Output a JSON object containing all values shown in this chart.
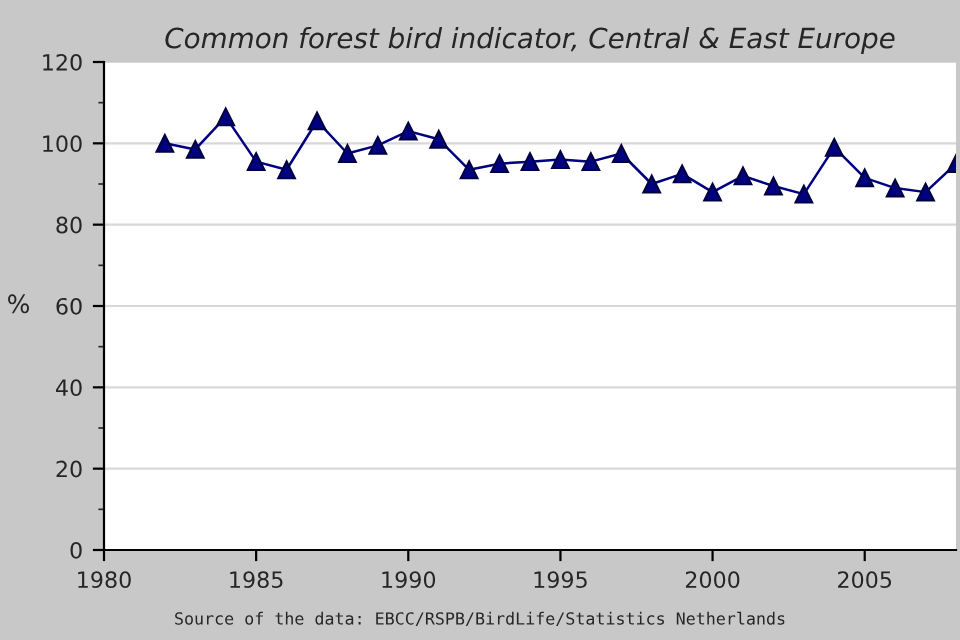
{
  "chart_data": {
    "type": "line",
    "title": "Common forest bird indicator, Central & East Europe",
    "ylabel": "%",
    "annotations": [
      "Source of the data: EBCC/RSPB/BirdLife/Statistics Netherlands"
    ],
    "x": [
      1982,
      1983,
      1984,
      1985,
      1986,
      1987,
      1988,
      1989,
      1990,
      1991,
      1992,
      1993,
      1994,
      1995,
      1996,
      1997,
      1998,
      1999,
      2000,
      2001,
      2002,
      2003,
      2004,
      2005,
      2006,
      2007,
      2008
    ],
    "series": [
      {
        "color": "#000080",
        "values": [
          100,
          98.5,
          106.5,
          95.5,
          93.5,
          105.5,
          97.5,
          99.5,
          103,
          101,
          93.5,
          95,
          95.5,
          96,
          95.5,
          97.5,
          90,
          92.5,
          88,
          92,
          89.5,
          87.5,
          99,
          91.5,
          89,
          88,
          95
        ]
      }
    ],
    "xlim": [
      1980,
      2008
    ],
    "xticks": [
      1980,
      1985,
      1990,
      1995,
      2000,
      2005
    ],
    "ylim": [
      0,
      120
    ],
    "yticks": [
      0,
      20,
      40,
      60,
      80,
      100,
      120
    ],
    "grid": "y",
    "marker": "triangle",
    "line_style": "solid",
    "legend": false
  }
}
